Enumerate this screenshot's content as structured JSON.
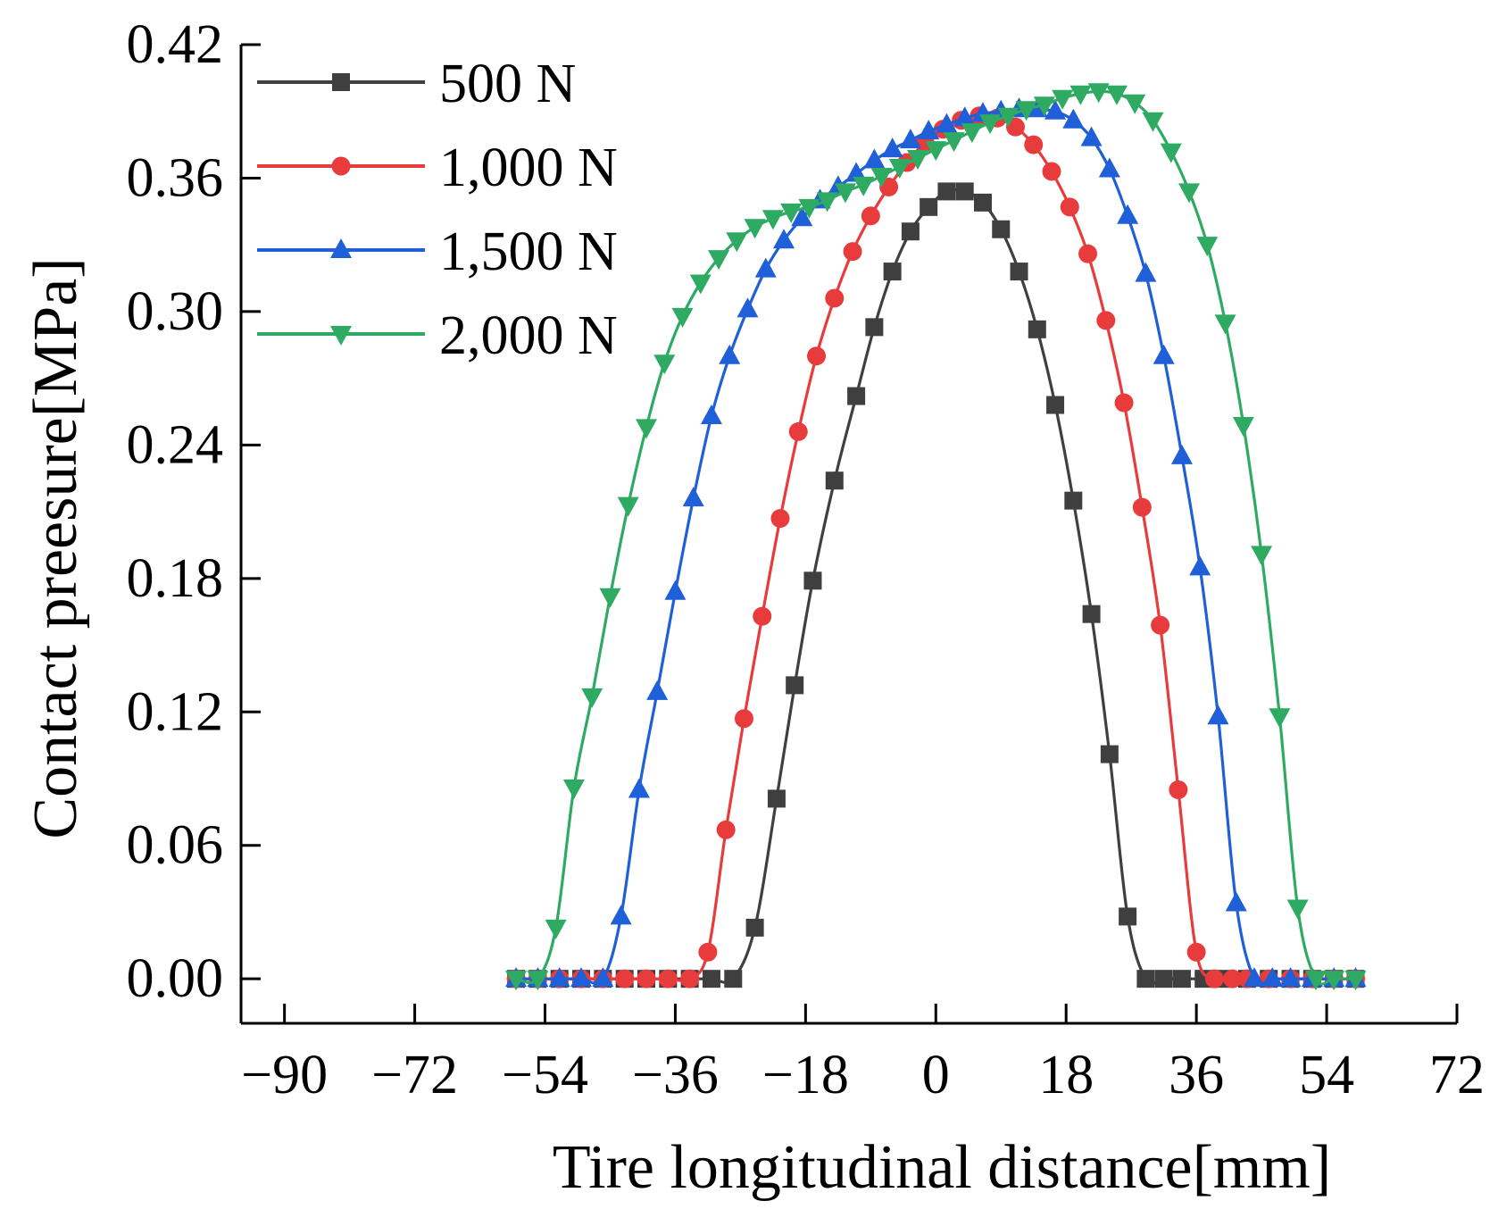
{
  "chart_data": {
    "type": "line",
    "title": "",
    "xlabel": "Tire longitudinal distance[mm]",
    "ylabel": "Contact preesure[MPa]",
    "xlim": [
      -96,
      72
    ],
    "ylim": [
      -0.02,
      0.42
    ],
    "xticks": [
      -90,
      -72,
      -54,
      -36,
      -18,
      0,
      18,
      36,
      54,
      72
    ],
    "xtick_labels": [
      "−90",
      "−72",
      "−54",
      "−36",
      "−18",
      "0",
      "18",
      "36",
      "54",
      "72"
    ],
    "yticks": [
      0.0,
      0.06,
      0.12,
      0.18,
      0.24,
      0.3,
      0.36,
      0.42
    ],
    "ytick_labels": [
      "0.00",
      "0.06",
      "0.12",
      "0.18",
      "0.24",
      "0.30",
      "0.36",
      "0.42"
    ],
    "legend_position": "top-left",
    "series": [
      {
        "name": "500 N",
        "color": "#3f3f3f",
        "marker": "square",
        "x": [
          -58,
          -55,
          -52,
          -49,
          -46,
          -43,
          -40,
          -37,
          -34,
          -31,
          -28,
          -25,
          -22,
          -19.5,
          -17,
          -14,
          -11,
          -8.5,
          -6,
          -3.5,
          -1,
          1.5,
          4,
          6.5,
          9,
          11.5,
          14,
          16.5,
          19,
          21.5,
          24,
          26.5,
          29,
          31.5,
          34,
          37,
          40,
          43,
          46,
          49,
          52,
          55,
          58
        ],
        "y": [
          0,
          0,
          0,
          0,
          0,
          0,
          0,
          0,
          0,
          0,
          0,
          0.023,
          0.081,
          0.132,
          0.179,
          0.224,
          0.262,
          0.293,
          0.318,
          0.336,
          0.347,
          0.354,
          0.354,
          0.349,
          0.337,
          0.318,
          0.292,
          0.258,
          0.215,
          0.164,
          0.101,
          0.028,
          0,
          0,
          0,
          0,
          0,
          0,
          0,
          0,
          0,
          0,
          0
        ]
      },
      {
        "name": "1,000 N",
        "color": "#e83b3b",
        "marker": "circle",
        "x": [
          -58,
          -55,
          -52,
          -49,
          -46,
          -43,
          -40,
          -37,
          -34,
          -31.5,
          -29,
          -26.5,
          -24,
          -21.5,
          -19,
          -16.5,
          -14,
          -11.5,
          -9,
          -6.5,
          -4,
          -1.5,
          1,
          3.5,
          6,
          8.5,
          11,
          13.5,
          16,
          18.5,
          21,
          23.5,
          26,
          28.5,
          31,
          33.5,
          36,
          38.5,
          41,
          43,
          46,
          49,
          52,
          55,
          58
        ],
        "y": [
          0,
          0,
          0,
          0,
          0,
          0,
          0,
          0,
          0,
          0.012,
          0.067,
          0.117,
          0.163,
          0.207,
          0.246,
          0.28,
          0.306,
          0.327,
          0.343,
          0.356,
          0.367,
          0.376,
          0.382,
          0.386,
          0.388,
          0.387,
          0.383,
          0.375,
          0.363,
          0.347,
          0.326,
          0.296,
          0.259,
          0.212,
          0.159,
          0.085,
          0.012,
          0,
          0,
          0,
          0,
          0,
          0,
          0,
          0
        ]
      },
      {
        "name": "1,500 N",
        "color": "#1f5fd8",
        "marker": "triangle-up",
        "x": [
          -58,
          -55,
          -52,
          -49,
          -46,
          -43.5,
          -41,
          -38.5,
          -36,
          -33.5,
          -31,
          -28.5,
          -26,
          -23.5,
          -21,
          -18.5,
          -16,
          -13.5,
          -11,
          -8.5,
          -6,
          -3.5,
          -1,
          1.5,
          4,
          6.5,
          9,
          11.5,
          14,
          16.5,
          19,
          21.5,
          24,
          26.5,
          29,
          31.5,
          34,
          36.5,
          39,
          41.5,
          44,
          46.5,
          49,
          52,
          55,
          58
        ],
        "y": [
          0,
          0,
          0,
          0,
          0,
          0.028,
          0.085,
          0.129,
          0.174,
          0.216,
          0.253,
          0.28,
          0.301,
          0.319,
          0.332,
          0.342,
          0.35,
          0.356,
          0.362,
          0.368,
          0.373,
          0.377,
          0.381,
          0.384,
          0.387,
          0.389,
          0.39,
          0.391,
          0.391,
          0.39,
          0.386,
          0.378,
          0.364,
          0.343,
          0.317,
          0.28,
          0.235,
          0.185,
          0.118,
          0.034,
          0,
          0,
          0,
          0,
          0,
          0
        ]
      },
      {
        "name": "2,000 N",
        "color": "#2eaa62",
        "marker": "triangle-down",
        "x": [
          -58,
          -55,
          -52.5,
          -50,
          -47.5,
          -45,
          -42.5,
          -40,
          -37.5,
          -35,
          -32.5,
          -30,
          -27.5,
          -25,
          -22.5,
          -20,
          -17.5,
          -15,
          -12.5,
          -10,
          -7.5,
          -5,
          -2.5,
          0,
          2.5,
          5,
          7.5,
          10,
          12.5,
          15,
          17.5,
          20,
          22.5,
          25,
          27.5,
          30,
          32.5,
          35,
          37.5,
          40,
          42.5,
          45,
          47.5,
          50,
          52.5,
          55,
          58
        ],
        "y": [
          0,
          0,
          0.023,
          0.086,
          0.127,
          0.172,
          0.213,
          0.248,
          0.277,
          0.298,
          0.313,
          0.324,
          0.332,
          0.338,
          0.342,
          0.345,
          0.347,
          0.35,
          0.354,
          0.357,
          0.361,
          0.365,
          0.369,
          0.373,
          0.377,
          0.381,
          0.385,
          0.388,
          0.391,
          0.393,
          0.396,
          0.398,
          0.399,
          0.398,
          0.394,
          0.386,
          0.372,
          0.354,
          0.33,
          0.295,
          0.249,
          0.191,
          0.118,
          0.032,
          0,
          0,
          0
        ]
      }
    ]
  }
}
